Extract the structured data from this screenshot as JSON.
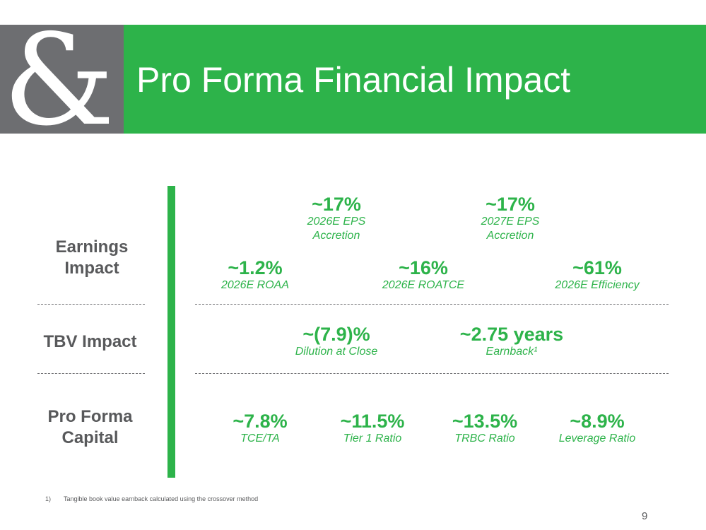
{
  "slide": {
    "title": "Pro Forma Financial Impact",
    "logo_glyph": "&",
    "page_number": "9"
  },
  "rows": {
    "earnings_label": "Earnings Impact",
    "tbv_label": "TBV Impact",
    "capital_label": "Pro Forma Capital"
  },
  "earnings": {
    "eps_2026": {
      "value": "~17%",
      "label": "2026E EPS Accretion"
    },
    "eps_2027": {
      "value": "~17%",
      "label": "2027E EPS Accretion"
    },
    "roaa": {
      "value": "~1.2%",
      "label": "2026E ROAA"
    },
    "roatce": {
      "value": "~16%",
      "label": "2026E ROATCE"
    },
    "efficiency": {
      "value": "~61%",
      "label": "2026E Efficiency"
    }
  },
  "tbv": {
    "dilution": {
      "value": "~(7.9)%",
      "label": "Dilution at Close"
    },
    "earnback": {
      "value": "~2.75 years",
      "label": "Earnback¹"
    }
  },
  "capital": {
    "tce_ta": {
      "value": "~7.8%",
      "label": "TCE/TA"
    },
    "tier1": {
      "value": "~11.5%",
      "label": "Tier 1 Ratio"
    },
    "trbc": {
      "value": "~13.5%",
      "label": "TRBC Ratio"
    },
    "leverage": {
      "value": "~8.9%",
      "label": "Leverage Ratio"
    }
  },
  "footnote": {
    "number": "1)",
    "text": "Tangible book value earnback calculated using the crossover method"
  },
  "colors": {
    "brand_green": "#2db34a",
    "brand_gray": "#6d6e71",
    "label_gray": "#58595b"
  }
}
